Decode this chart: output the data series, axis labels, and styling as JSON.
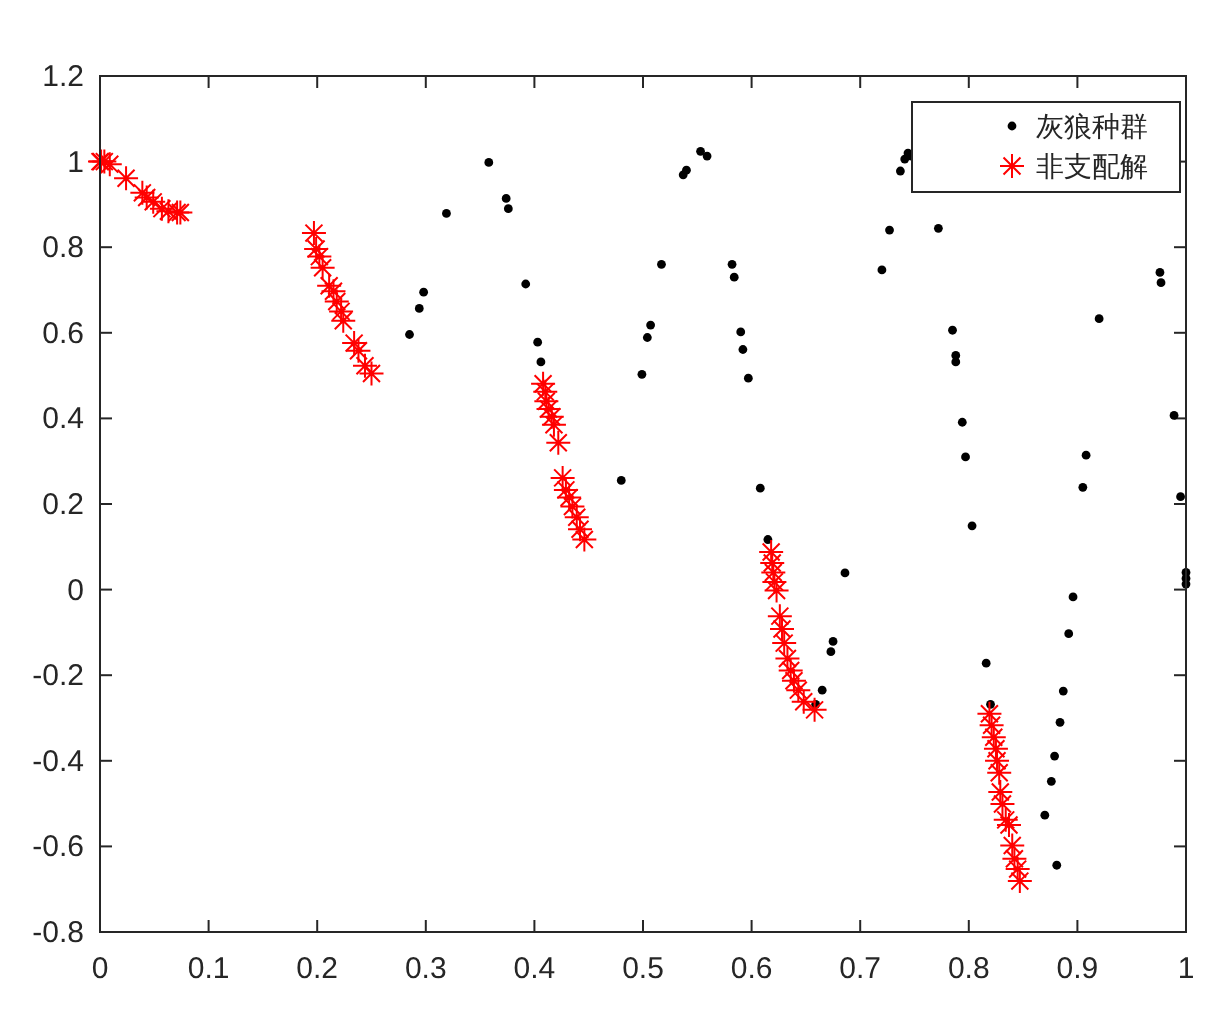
{
  "chart_data": {
    "type": "scatter",
    "xlim": [
      0,
      1
    ],
    "ylim": [
      -0.8,
      1.2
    ],
    "xticks": [
      0,
      0.1,
      0.2,
      0.3,
      0.4,
      0.5,
      0.6,
      0.7,
      0.8,
      0.9,
      1
    ],
    "yticks": [
      -0.8,
      -0.6,
      -0.4,
      -0.2,
      0,
      0.2,
      0.4,
      0.6,
      0.8,
      1,
      1.2
    ],
    "legend": "top right",
    "series": [
      {
        "name": "灰狼种群",
        "color": "#000000",
        "marker": "circle",
        "x": [
          0.285,
          0.294,
          0.298,
          0.319,
          0.358,
          0.374,
          0.376,
          0.392,
          0.403,
          0.406,
          0.48,
          0.499,
          0.504,
          0.507,
          0.517,
          0.537,
          0.54,
          0.553,
          0.559,
          0.582,
          0.584,
          0.59,
          0.592,
          0.597,
          0.608,
          0.615,
          0.686,
          0.675,
          0.673,
          0.665,
          0.659,
          0.72,
          0.727,
          0.737,
          0.741,
          0.744,
          0.747,
          0.772,
          0.785,
          0.788,
          0.788,
          0.794,
          0.797,
          0.803,
          0.816,
          0.82,
          0.87,
          0.881,
          0.876,
          0.879,
          0.884,
          0.887,
          0.892,
          0.896,
          0.905,
          0.908,
          0.92,
          0.976,
          0.977,
          0.989,
          0.995,
          1.0,
          1.0,
          1.0
        ],
        "values": [
          0.596,
          0.657,
          0.695,
          0.879,
          0.998,
          0.914,
          0.89,
          0.714,
          0.578,
          0.532,
          0.255,
          0.503,
          0.589,
          0.618,
          0.76,
          0.969,
          0.98,
          1.024,
          1.013,
          0.76,
          0.73,
          0.602,
          0.561,
          0.494,
          0.237,
          0.117,
          0.039,
          -0.121,
          -0.145,
          -0.235,
          -0.268,
          0.747,
          0.84,
          0.978,
          1.006,
          1.02,
          1.013,
          0.844,
          0.606,
          0.547,
          0.532,
          0.391,
          0.31,
          0.149,
          -0.172,
          -0.268,
          -0.527,
          -0.644,
          -0.448,
          -0.389,
          -0.31,
          -0.237,
          -0.103,
          -0.017,
          0.239,
          0.314,
          0.633,
          0.741,
          0.717,
          0.407,
          0.217,
          0.04,
          0.026,
          0.013
        ]
      },
      {
        "name": "非支配解",
        "color": "#ff0000",
        "marker": "cross",
        "x": [
          0,
          0.001,
          0.004,
          0.009,
          0.024,
          0.039,
          0.043,
          0.049,
          0.057,
          0.063,
          0.071,
          0.074,
          0.197,
          0.199,
          0.202,
          0.205,
          0.211,
          0.215,
          0.218,
          0.222,
          0.224,
          0.234,
          0.238,
          0.244,
          0.25,
          0.408,
          0.41,
          0.411,
          0.413,
          0.416,
          0.418,
          0.422,
          0.426,
          0.429,
          0.432,
          0.435,
          0.439,
          0.442,
          0.446,
          0.618,
          0.619,
          0.62,
          0.621,
          0.623,
          0.626,
          0.628,
          0.63,
          0.633,
          0.636,
          0.639,
          0.643,
          0.648,
          0.658,
          0.819,
          0.821,
          0.823,
          0.825,
          0.826,
          0.828,
          0.829,
          0.831,
          0.834,
          0.837,
          0.84,
          0.842,
          0.845,
          0.847
        ],
        "values": [
          1.0,
          1.0,
          1.0,
          0.994,
          0.961,
          0.927,
          0.916,
          0.906,
          0.89,
          0.884,
          0.881,
          0.881,
          0.833,
          0.796,
          0.778,
          0.752,
          0.71,
          0.697,
          0.673,
          0.65,
          0.628,
          0.576,
          0.558,
          0.523,
          0.505,
          0.481,
          0.462,
          0.44,
          0.422,
          0.404,
          0.385,
          0.343,
          0.261,
          0.233,
          0.215,
          0.194,
          0.169,
          0.141,
          0.117,
          0.088,
          0.062,
          0.04,
          0.018,
          -0.002,
          -0.062,
          -0.092,
          -0.125,
          -0.161,
          -0.189,
          -0.213,
          -0.235,
          -0.262,
          -0.281,
          -0.29,
          -0.317,
          -0.345,
          -0.372,
          -0.4,
          -0.428,
          -0.473,
          -0.501,
          -0.538,
          -0.55,
          -0.598,
          -0.629,
          -0.653,
          -0.681
        ]
      }
    ]
  }
}
